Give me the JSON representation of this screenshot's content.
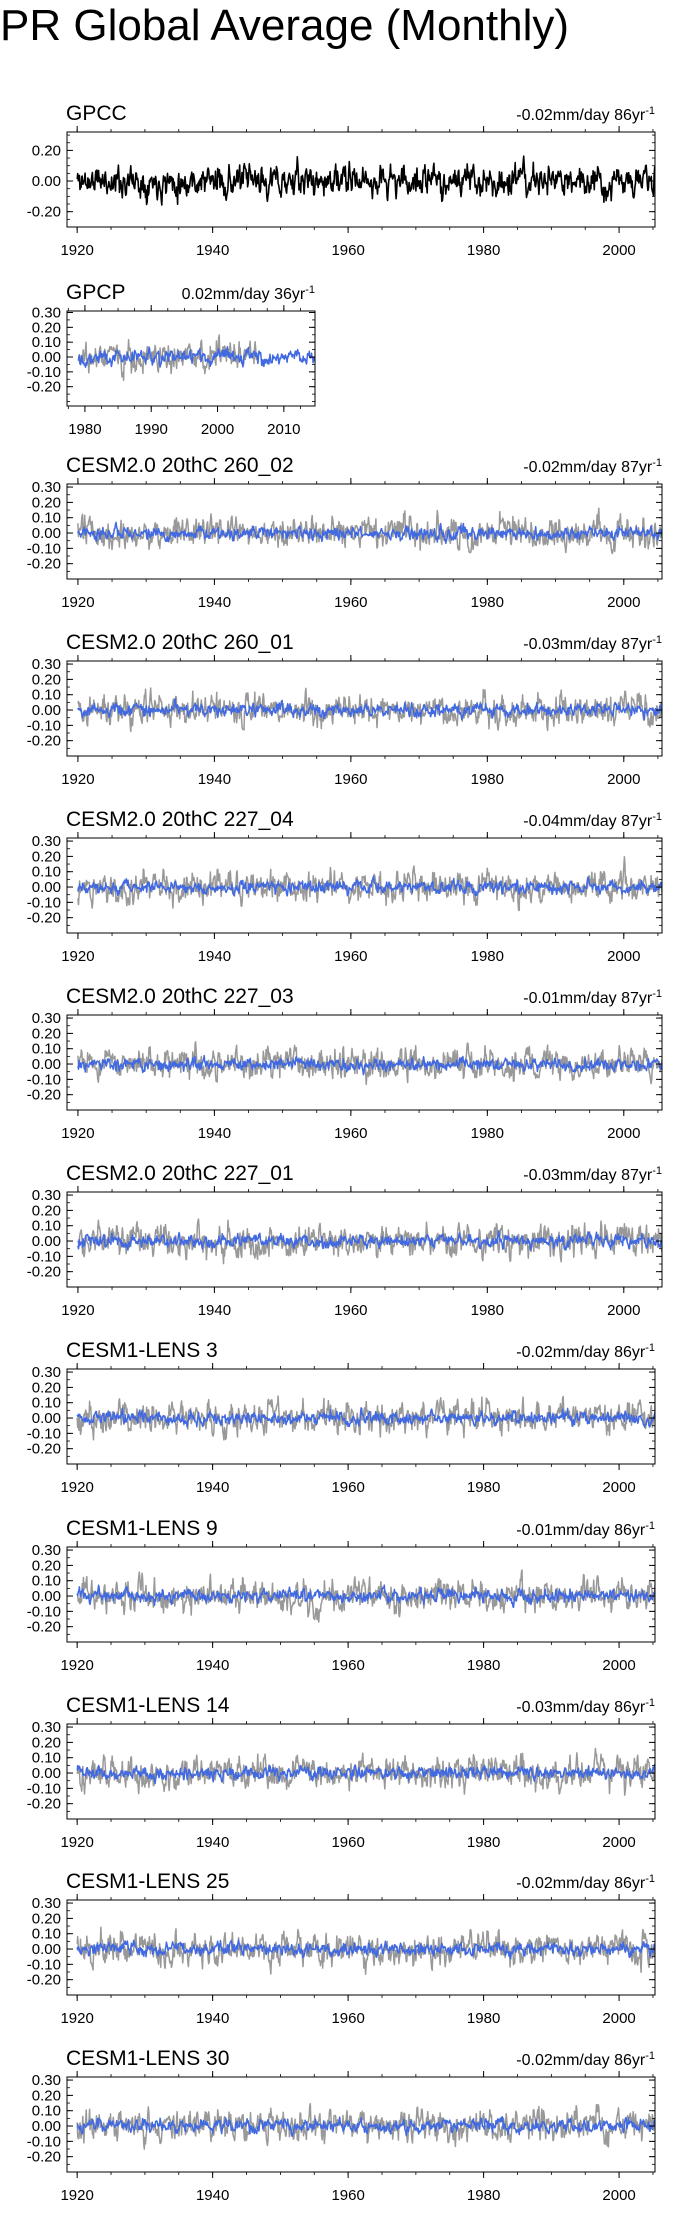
{
  "page": {
    "title": "PR Global Average (Monthly)"
  },
  "colors": {
    "observed": "#000000",
    "observed_ref": "#999999",
    "model": "#4169e1",
    "frame": "#000000"
  },
  "chart_data": [
    {
      "type": "line",
      "name": "GPCC",
      "title": "GPCC",
      "trend": "-0.02mm/day 86yr",
      "trend_sup": "-1",
      "xlim": [
        1918.5,
        2005.3
      ],
      "ylim": [
        -0.3,
        0.32
      ],
      "yticks": [
        0.2,
        0.0,
        -0.2
      ],
      "ytick_labels": [
        "0.20",
        "0.00",
        "-0.20"
      ],
      "xticks": [
        1920,
        1940,
        1960,
        1980,
        2000
      ],
      "xtick_labels": [
        "1920",
        "1940",
        "1960",
        "1980",
        "2000"
      ],
      "series": [
        {
          "name": "GPCC",
          "color": "#000000",
          "start": 1920,
          "end": 2005.9,
          "amp": 0.085,
          "seed": 11
        }
      ]
    },
    {
      "type": "line",
      "name": "GPCP",
      "title": "GPCP",
      "trend": "0.02mm/day 36yr",
      "trend_sup": "-1",
      "xlim": [
        1977.3,
        2014.7
      ],
      "ylim": [
        -0.33,
        0.31
      ],
      "yticks": [
        0.3,
        0.2,
        0.1,
        0.0,
        -0.1,
        -0.2
      ],
      "ytick_labels": [
        "0.30",
        "0.20",
        "0.10",
        "0.00",
        "-0.10",
        "-0.20"
      ],
      "xticks": [
        1980,
        1990,
        2000,
        2010
      ],
      "xtick_labels": [
        "1980",
        "1990",
        "2000",
        "2010"
      ],
      "series": [
        {
          "name": "reference",
          "color": "#999999",
          "start": 1979,
          "end": 2005.9,
          "amp": 0.085,
          "seed": 21
        },
        {
          "name": "GPCP",
          "color": "#4169e1",
          "start": 1979,
          "end": 2014.9,
          "amp": 0.04,
          "seed": 22
        }
      ]
    },
    {
      "type": "line",
      "name": "CESM2.0 20thC 260_02",
      "title": "CESM2.0 20thC 260_02",
      "trend": "-0.02mm/day 87yr",
      "trend_sup": "-1",
      "xlim": [
        1918.4,
        2005.6
      ],
      "ylim": [
        -0.3,
        0.32
      ],
      "yticks": [
        0.3,
        0.2,
        0.1,
        0.0,
        -0.1,
        -0.2
      ],
      "ytick_labels": [
        "0.30",
        "0.20",
        "0.10",
        "0.00",
        "-0.10",
        "-0.20"
      ],
      "xticks": [
        1920,
        1940,
        1960,
        1980,
        2000
      ],
      "xtick_labels": [
        "1920",
        "1940",
        "1960",
        "1980",
        "2000"
      ],
      "series": [
        {
          "name": "reference",
          "color": "#999999",
          "start": 1920,
          "end": 2005.9,
          "amp": 0.085,
          "seed": 31
        },
        {
          "name": "CESM2.0 20thC 260_02",
          "color": "#4169e1",
          "start": 1920,
          "end": 2005.9,
          "amp": 0.035,
          "seed": 32
        }
      ]
    },
    {
      "type": "line",
      "name": "CESM2.0 20thC 260_01",
      "title": "CESM2.0 20thC 260_01",
      "trend": "-0.03mm/day 87yr",
      "trend_sup": "-1",
      "xlim": [
        1918.4,
        2005.6
      ],
      "ylim": [
        -0.3,
        0.32
      ],
      "yticks": [
        0.3,
        0.2,
        0.1,
        0.0,
        -0.1,
        -0.2
      ],
      "ytick_labels": [
        "0.30",
        "0.20",
        "0.10",
        "0.00",
        "-0.10",
        "-0.20"
      ],
      "xticks": [
        1920,
        1940,
        1960,
        1980,
        2000
      ],
      "xtick_labels": [
        "1920",
        "1940",
        "1960",
        "1980",
        "2000"
      ],
      "series": [
        {
          "name": "reference",
          "color": "#999999",
          "start": 1920,
          "end": 2005.9,
          "amp": 0.085,
          "seed": 41
        },
        {
          "name": "CESM2.0 20thC 260_01",
          "color": "#4169e1",
          "start": 1920,
          "end": 2005.9,
          "amp": 0.035,
          "seed": 42
        }
      ]
    },
    {
      "type": "line",
      "name": "CESM2.0 20thC 227_04",
      "title": "CESM2.0 20thC 227_04",
      "trend": "-0.04mm/day 87yr",
      "trend_sup": "-1",
      "xlim": [
        1918.4,
        2005.6
      ],
      "ylim": [
        -0.3,
        0.32
      ],
      "yticks": [
        0.3,
        0.2,
        0.1,
        0.0,
        -0.1,
        -0.2
      ],
      "ytick_labels": [
        "0.30",
        "0.20",
        "0.10",
        "0.00",
        "-0.10",
        "-0.20"
      ],
      "xticks": [
        1920,
        1940,
        1960,
        1980,
        2000
      ],
      "xtick_labels": [
        "1920",
        "1940",
        "1960",
        "1980",
        "2000"
      ],
      "series": [
        {
          "name": "reference",
          "color": "#999999",
          "start": 1920,
          "end": 2005.9,
          "amp": 0.085,
          "seed": 51
        },
        {
          "name": "CESM2.0 20thC 227_04",
          "color": "#4169e1",
          "start": 1920,
          "end": 2005.9,
          "amp": 0.035,
          "seed": 52
        }
      ]
    },
    {
      "type": "line",
      "name": "CESM2.0 20thC 227_03",
      "title": "CESM2.0 20thC 227_03",
      "trend": "-0.01mm/day 87yr",
      "trend_sup": "-1",
      "xlim": [
        1918.4,
        2005.6
      ],
      "ylim": [
        -0.3,
        0.32
      ],
      "yticks": [
        0.3,
        0.2,
        0.1,
        0.0,
        -0.1,
        -0.2
      ],
      "ytick_labels": [
        "0.30",
        "0.20",
        "0.10",
        "0.00",
        "-0.10",
        "-0.20"
      ],
      "xticks": [
        1920,
        1940,
        1960,
        1980,
        2000
      ],
      "xtick_labels": [
        "1920",
        "1940",
        "1960",
        "1980",
        "2000"
      ],
      "series": [
        {
          "name": "reference",
          "color": "#999999",
          "start": 1920,
          "end": 2005.9,
          "amp": 0.085,
          "seed": 61
        },
        {
          "name": "CESM2.0 20thC 227_03",
          "color": "#4169e1",
          "start": 1920,
          "end": 2005.9,
          "amp": 0.035,
          "seed": 62
        }
      ]
    },
    {
      "type": "line",
      "name": "CESM2.0 20thC 227_01",
      "title": "CESM2.0 20thC 227_01",
      "trend": "-0.03mm/day 87yr",
      "trend_sup": "-1",
      "xlim": [
        1918.4,
        2005.6
      ],
      "ylim": [
        -0.3,
        0.32
      ],
      "yticks": [
        0.3,
        0.2,
        0.1,
        0.0,
        -0.1,
        -0.2
      ],
      "ytick_labels": [
        "0.30",
        "0.20",
        "0.10",
        "0.00",
        "-0.10",
        "-0.20"
      ],
      "xticks": [
        1920,
        1940,
        1960,
        1980,
        2000
      ],
      "xtick_labels": [
        "1920",
        "1940",
        "1960",
        "1980",
        "2000"
      ],
      "series": [
        {
          "name": "reference",
          "color": "#999999",
          "start": 1920,
          "end": 2005.9,
          "amp": 0.085,
          "seed": 71
        },
        {
          "name": "CESM2.0 20thC 227_01",
          "color": "#4169e1",
          "start": 1920,
          "end": 2005.9,
          "amp": 0.035,
          "seed": 72
        }
      ]
    },
    {
      "type": "line",
      "name": "CESM1-LENS 3",
      "title": "CESM1-LENS 3",
      "trend": "-0.02mm/day 86yr",
      "trend_sup": "-1",
      "xlim": [
        1918.5,
        2005.3
      ],
      "ylim": [
        -0.3,
        0.32
      ],
      "yticks": [
        0.3,
        0.2,
        0.1,
        0.0,
        -0.1,
        -0.2
      ],
      "ytick_labels": [
        "0.30",
        "0.20",
        "0.10",
        "0.00",
        "-0.10",
        "-0.20"
      ],
      "xticks": [
        1920,
        1940,
        1960,
        1980,
        2000
      ],
      "xtick_labels": [
        "1920",
        "1940",
        "1960",
        "1980",
        "2000"
      ],
      "series": [
        {
          "name": "reference",
          "color": "#999999",
          "start": 1920,
          "end": 2005.9,
          "amp": 0.085,
          "seed": 81
        },
        {
          "name": "CESM1-LENS 3",
          "color": "#4169e1",
          "start": 1920,
          "end": 2005.9,
          "amp": 0.035,
          "seed": 82
        }
      ]
    },
    {
      "type": "line",
      "name": "CESM1-LENS 9",
      "title": "CESM1-LENS 9",
      "trend": "-0.01mm/day 86yr",
      "trend_sup": "-1",
      "xlim": [
        1918.5,
        2005.3
      ],
      "ylim": [
        -0.3,
        0.32
      ],
      "yticks": [
        0.3,
        0.2,
        0.1,
        0.0,
        -0.1,
        -0.2
      ],
      "ytick_labels": [
        "0.30",
        "0.20",
        "0.10",
        "0.00",
        "-0.10",
        "-0.20"
      ],
      "xticks": [
        1920,
        1940,
        1960,
        1980,
        2000
      ],
      "xtick_labels": [
        "1920",
        "1940",
        "1960",
        "1980",
        "2000"
      ],
      "series": [
        {
          "name": "reference",
          "color": "#999999",
          "start": 1920,
          "end": 2005.9,
          "amp": 0.085,
          "seed": 91
        },
        {
          "name": "CESM1-LENS 9",
          "color": "#4169e1",
          "start": 1920,
          "end": 2005.9,
          "amp": 0.035,
          "seed": 92
        }
      ]
    },
    {
      "type": "line",
      "name": "CESM1-LENS 14",
      "title": "CESM1-LENS 14",
      "trend": "-0.03mm/day 86yr",
      "trend_sup": "-1",
      "xlim": [
        1918.5,
        2005.3
      ],
      "ylim": [
        -0.3,
        0.32
      ],
      "yticks": [
        0.3,
        0.2,
        0.1,
        0.0,
        -0.1,
        -0.2
      ],
      "ytick_labels": [
        "0.30",
        "0.20",
        "0.10",
        "0.00",
        "-0.10",
        "-0.20"
      ],
      "xticks": [
        1920,
        1940,
        1960,
        1980,
        2000
      ],
      "xtick_labels": [
        "1920",
        "1940",
        "1960",
        "1980",
        "2000"
      ],
      "series": [
        {
          "name": "reference",
          "color": "#999999",
          "start": 1920,
          "end": 2005.9,
          "amp": 0.085,
          "seed": 101
        },
        {
          "name": "CESM1-LENS 14",
          "color": "#4169e1",
          "start": 1920,
          "end": 2005.9,
          "amp": 0.035,
          "seed": 102
        }
      ]
    },
    {
      "type": "line",
      "name": "CESM1-LENS 25",
      "title": "CESM1-LENS 25",
      "trend": "-0.02mm/day 86yr",
      "trend_sup": "-1",
      "xlim": [
        1918.5,
        2005.3
      ],
      "ylim": [
        -0.3,
        0.32
      ],
      "yticks": [
        0.3,
        0.2,
        0.1,
        0.0,
        -0.1,
        -0.2
      ],
      "ytick_labels": [
        "0.30",
        "0.20",
        "0.10",
        "0.00",
        "-0.10",
        "-0.20"
      ],
      "xticks": [
        1920,
        1940,
        1960,
        1980,
        2000
      ],
      "xtick_labels": [
        "1920",
        "1940",
        "1960",
        "1980",
        "2000"
      ],
      "series": [
        {
          "name": "reference",
          "color": "#999999",
          "start": 1920,
          "end": 2005.9,
          "amp": 0.085,
          "seed": 111
        },
        {
          "name": "CESM1-LENS 25",
          "color": "#4169e1",
          "start": 1920,
          "end": 2005.9,
          "amp": 0.035,
          "seed": 112
        }
      ]
    },
    {
      "type": "line",
      "name": "CESM1-LENS 30",
      "title": "CESM1-LENS 30",
      "trend": "-0.02mm/day 86yr",
      "trend_sup": "-1",
      "xlim": [
        1918.5,
        2005.3
      ],
      "ylim": [
        -0.3,
        0.32
      ],
      "yticks": [
        0.3,
        0.2,
        0.1,
        0.0,
        -0.1,
        -0.2
      ],
      "ytick_labels": [
        "0.30",
        "0.20",
        "0.10",
        "0.00",
        "-0.10",
        "-0.20"
      ],
      "xticks": [
        1920,
        1940,
        1960,
        1980,
        2000
      ],
      "xtick_labels": [
        "1920",
        "1940",
        "1960",
        "1980",
        "2000"
      ],
      "series": [
        {
          "name": "reference",
          "color": "#999999",
          "start": 1920,
          "end": 2005.9,
          "amp": 0.085,
          "seed": 121
        },
        {
          "name": "CESM1-LENS 30",
          "color": "#4169e1",
          "start": 1920,
          "end": 2005.9,
          "amp": 0.035,
          "seed": 122
        }
      ]
    }
  ]
}
